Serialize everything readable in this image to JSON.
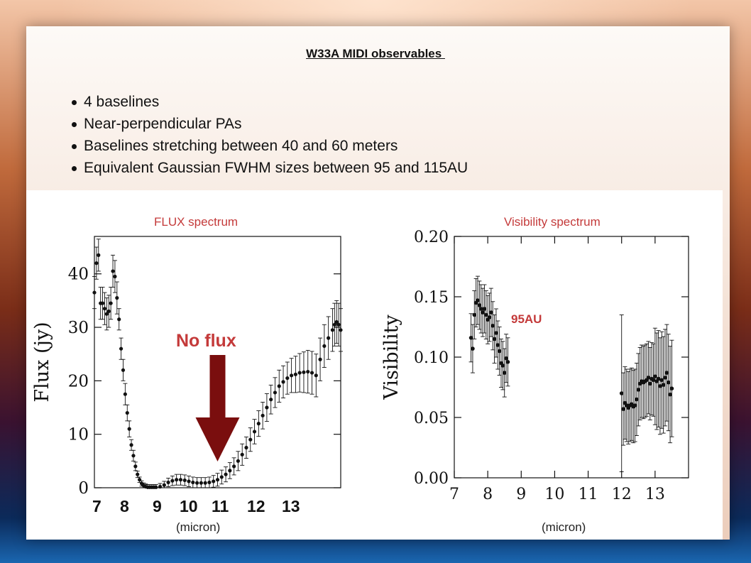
{
  "slide": {
    "title": "W33A MIDI observables ",
    "bullets": [
      "4 baselines",
      "Near-perpendicular PAs",
      "Baselines stretching between 40 and 60 meters",
      "Equivalent Gaussian FWHM sizes between 95 and 115AU"
    ]
  },
  "colors": {
    "accent_red": "#c43a3a",
    "arrow": "#7a0e0e",
    "data": "#111111"
  },
  "chart_data": [
    {
      "type": "scatter",
      "title": "FLUX spectrum",
      "ylabel": "Flux (jy)",
      "xlabel": "(micron)",
      "xlim": [
        7.5,
        13.5
      ],
      "ylim": [
        0,
        47
      ],
      "yticks": [
        0,
        10,
        20,
        30,
        40
      ],
      "xtick_labels": [
        "7",
        "8",
        "9",
        "10",
        "11",
        "12",
        "13"
      ],
      "annotation": "No flux",
      "annotation_x": 10.5,
      "series": [
        {
          "x": [
            7.5,
            7.55,
            7.6,
            7.65,
            7.7,
            7.75,
            7.8,
            7.85,
            7.9,
            7.95,
            8.0,
            8.05,
            8.1,
            8.15,
            8.2,
            8.25,
            8.3,
            8.35,
            8.4,
            8.45,
            8.5,
            8.55,
            8.6,
            8.65,
            8.7,
            8.75,
            8.8,
            8.85,
            8.9,
            8.95,
            9.0,
            9.1,
            9.2,
            9.3,
            9.4,
            9.5,
            9.6,
            9.7,
            9.8,
            9.9,
            10.0,
            10.1,
            10.2,
            10.3,
            10.4,
            10.5,
            10.6,
            10.7,
            10.8,
            10.9,
            11.0,
            11.1,
            11.2,
            11.3,
            11.4,
            11.5,
            11.6,
            11.7,
            11.8,
            11.9,
            12.0,
            12.1,
            12.2,
            12.3,
            12.4,
            12.5,
            12.6,
            12.7,
            12.8,
            12.9,
            13.0,
            13.1,
            13.2,
            13.3,
            13.35,
            13.4,
            13.45,
            13.5
          ],
          "y": [
            36.5,
            42,
            43.5,
            34.5,
            34.5,
            33.5,
            32.5,
            33,
            34.5,
            40.5,
            39.5,
            35.5,
            31.5,
            26,
            22,
            17.5,
            14,
            11,
            8,
            6,
            4,
            2.5,
            1.5,
            0.8,
            0.4,
            0.2,
            0.1,
            0.1,
            0.1,
            0.1,
            0.1,
            0.2,
            0.5,
            1,
            1.3,
            1.5,
            1.5,
            1.4,
            1.2,
            1,
            0.9,
            0.9,
            0.9,
            1,
            1.2,
            1.5,
            2,
            2.5,
            3.2,
            4,
            5,
            6.2,
            7.5,
            9,
            10.5,
            12,
            13.5,
            15,
            16.5,
            17.8,
            19,
            19.8,
            20.5,
            21,
            21.2,
            21.5,
            21.6,
            21.7,
            21.5,
            21,
            24,
            26.5,
            28,
            29.5,
            30.5,
            31,
            30.5,
            29.5
          ],
          "err": [
            3,
            3,
            3,
            3,
            3,
            3,
            3,
            3,
            3,
            3,
            3,
            3,
            2,
            2,
            2,
            2,
            1.5,
            1.5,
            1,
            1,
            0.8,
            0.6,
            0.5,
            0.5,
            0.5,
            0.5,
            0.5,
            0.5,
            0.5,
            0.5,
            0.5,
            0.6,
            0.7,
            0.8,
            0.9,
            1,
            1,
            1,
            1,
            1,
            1,
            1,
            1,
            1,
            1.1,
            1.2,
            1.3,
            1.4,
            1.5,
            1.6,
            1.8,
            2,
            2,
            2.2,
            2.3,
            2.4,
            2.5,
            2.6,
            2.7,
            2.8,
            3,
            3,
            3,
            3.2,
            3.4,
            3.6,
            3.8,
            4,
            4,
            4,
            4,
            4,
            4,
            4,
            4,
            4,
            4,
            4
          ]
        }
      ]
    },
    {
      "type": "scatter",
      "title": "Visibility spectrum",
      "ylabel": "Visibility",
      "xlabel": "(micron)",
      "xlim": [
        7.0,
        14.0
      ],
      "ylim": [
        0,
        0.2
      ],
      "yticks": [
        0.0,
        0.05,
        0.1,
        0.15,
        0.2
      ],
      "ytick_labels": [
        "0.00",
        "0.05",
        "0.10",
        "0.15",
        "0.20"
      ],
      "xticks": [
        7,
        8,
        9,
        10,
        11,
        12,
        13
      ],
      "xtick_labels": [
        "7",
        "8",
        "9",
        "10",
        "11",
        "12",
        "13"
      ],
      "annotation": "95AU",
      "series": [
        {
          "x": [
            7.5,
            7.55,
            7.6,
            7.65,
            7.7,
            7.75,
            7.8,
            7.85,
            7.9,
            7.95,
            8.0,
            8.05,
            8.1,
            8.15,
            8.2,
            8.25,
            8.3,
            8.35,
            8.4,
            8.45,
            8.5,
            8.55,
            8.6,
            12.0,
            12.05,
            12.1,
            12.15,
            12.2,
            12.25,
            12.3,
            12.35,
            12.4,
            12.45,
            12.5,
            12.55,
            12.6,
            12.65,
            12.7,
            12.75,
            12.8,
            12.85,
            12.9,
            12.95,
            13.0,
            13.05,
            13.1,
            13.15,
            13.2,
            13.25,
            13.3,
            13.35,
            13.4,
            13.45,
            13.5
          ],
          "y": [
            0.116,
            0.107,
            0.135,
            0.145,
            0.147,
            0.143,
            0.14,
            0.137,
            0.14,
            0.135,
            0.131,
            0.133,
            0.137,
            0.126,
            0.115,
            0.12,
            0.11,
            0.105,
            0.095,
            0.093,
            0.087,
            0.099,
            0.096,
            0.07,
            0.057,
            0.062,
            0.06,
            0.058,
            0.06,
            0.061,
            0.059,
            0.06,
            0.065,
            0.073,
            0.078,
            0.08,
            0.079,
            0.08,
            0.081,
            0.083,
            0.078,
            0.082,
            0.081,
            0.084,
            0.08,
            0.082,
            0.076,
            0.081,
            0.077,
            0.083,
            0.087,
            0.079,
            0.069,
            0.074
          ],
          "err": [
            0.02,
            0.02,
            0.02,
            0.02,
            0.02,
            0.02,
            0.02,
            0.02,
            0.02,
            0.02,
            0.02,
            0.02,
            0.02,
            0.02,
            0.02,
            0.02,
            0.02,
            0.02,
            0.02,
            0.02,
            0.02,
            0.02,
            0.02,
            0.065,
            0.03,
            0.03,
            0.03,
            0.03,
            0.03,
            0.03,
            0.03,
            0.03,
            0.03,
            0.03,
            0.03,
            0.03,
            0.03,
            0.03,
            0.03,
            0.03,
            0.03,
            0.03,
            0.03,
            0.04,
            0.04,
            0.04,
            0.04,
            0.04,
            0.04,
            0.04,
            0.04,
            0.04,
            0.04,
            0.04
          ]
        }
      ]
    }
  ]
}
